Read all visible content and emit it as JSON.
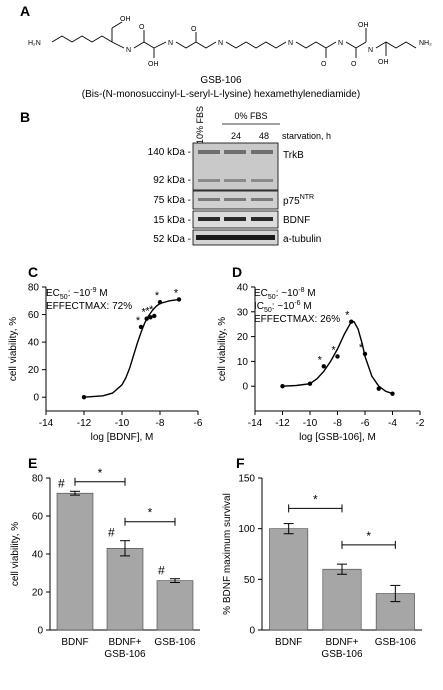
{
  "panels": {
    "A": {
      "letter": "A",
      "compound_label": "GSB-106",
      "compound_desc": "(Bis-(N-monosuccinyl-L-seryl-L-lysine) hexamethylenediamide)",
      "atoms": {
        "h2n": "H₂N",
        "nh2": "NH₂",
        "oh": "OH",
        "o": "O",
        "h": "H",
        "n": "N"
      }
    },
    "B": {
      "letter": "B",
      "lane_headers": {
        "fbs10": "10% FBS",
        "fbs0": "0% FBS",
        "h24": "24",
        "h48": "48",
        "starvation": "starvation, h"
      },
      "mw_markers": [
        "140 kDa -",
        "92 kDa -",
        "75 kDa -",
        "15 kDa -",
        "52 kDa -"
      ],
      "bands": {
        "trkb": "TrkB",
        "p75": "p75",
        "p75_sup": "NTR",
        "bdnf": "BDNF",
        "tubulin": "a-tubulin"
      }
    },
    "C": {
      "letter": "C",
      "annotation_ec50": "EC",
      "annotation_ec50_sub": "50",
      "annotation_ec50_val": ": ~10",
      "annotation_ec50_exp": "-9",
      "annotation_ec50_unit": " M",
      "annotation_effectmax": "EFFECTMAX: 72%"
    },
    "D": {
      "letter": "D",
      "annotation_ec50": "EC",
      "annotation_ec50_sub": "50",
      "annotation_ec50_val": ": ~10",
      "annotation_ec50_exp": "-8",
      "annotation_ec50_unit": " M",
      "annotation_ic50": "IC",
      "annotation_ic50_sub": "50",
      "annotation_ic50_val": ": ~10",
      "annotation_ic50_exp": "-6",
      "annotation_ic50_unit": " M",
      "annotation_effectmax": "EFFECTMAX: 26%"
    },
    "E": {
      "letter": "E"
    },
    "F": {
      "letter": "F"
    }
  },
  "chart_data": [
    {
      "id": "C",
      "type": "scatter",
      "xlabel": "log [BDNF], M",
      "ylabel": "cell viability, %",
      "xlim": [
        -14,
        -6
      ],
      "ylim": [
        -10,
        80
      ],
      "xticks": [
        "-14",
        "-12",
        "-10",
        "-8",
        "-6"
      ],
      "yticks": [
        "0",
        "20",
        "40",
        "60",
        "80"
      ],
      "x": [
        -12,
        -9,
        -8.7,
        -8.5,
        -8.3,
        -8,
        -7
      ],
      "y": [
        0,
        51,
        57,
        58,
        59,
        69,
        71
      ],
      "significant": [
        false,
        true,
        true,
        true,
        true,
        true,
        true
      ],
      "curve_x": [
        -12,
        -11,
        -10.5,
        -10,
        -9.8,
        -9.6,
        -9.4,
        -9.2,
        -9,
        -8.8,
        -8.6,
        -8.4,
        -8.2,
        -8,
        -7.5,
        -7
      ],
      "curve_y": [
        0,
        1,
        3,
        9,
        14,
        21,
        30,
        39,
        47,
        54,
        59,
        63,
        66,
        68,
        70,
        71
      ],
      "star_label": "*"
    },
    {
      "id": "D",
      "type": "scatter",
      "xlabel": "log [GSB-106], M",
      "ylabel": "cell viability, %",
      "xlim": [
        -14,
        -2
      ],
      "ylim": [
        -10,
        40
      ],
      "xticks": [
        "-14",
        "-12",
        "-10",
        "-8",
        "-6",
        "-4",
        "-2"
      ],
      "yticks": [
        "0",
        "10",
        "20",
        "30",
        "40"
      ],
      "x": [
        -12,
        -10,
        -9,
        -8,
        -7,
        -6,
        -5,
        -4
      ],
      "y": [
        0,
        1,
        8,
        12,
        26,
        13,
        -1,
        -3
      ],
      "significant": [
        false,
        false,
        true,
        true,
        true,
        true,
        false,
        false
      ],
      "curve_x": [
        -12,
        -11,
        -10,
        -9.5,
        -9,
        -8.5,
        -8,
        -7.5,
        -7,
        -6.8,
        -6.5,
        -6.2,
        -6,
        -5.5,
        -5,
        -4.5,
        -4
      ],
      "curve_y": [
        0,
        0.3,
        1,
        3,
        6,
        10,
        15,
        21,
        26,
        26,
        23,
        17,
        12,
        4,
        0,
        -2,
        -3
      ],
      "star_label": "*"
    },
    {
      "id": "E",
      "type": "bar",
      "ylabel": "cell viability, %",
      "ylim": [
        0,
        80
      ],
      "yticks": [
        "0",
        "20",
        "40",
        "60",
        "80"
      ],
      "categories": [
        "BDNF",
        "BDNF+\nGSB-106",
        "GSB-106"
      ],
      "category_lines": [
        [
          "BDNF"
        ],
        [
          "BDNF+",
          "GSB-106"
        ],
        [
          "GSB-106"
        ]
      ],
      "values": [
        72,
        43,
        26
      ],
      "errors": [
        1,
        4,
        1
      ],
      "bar_marks": [
        "#",
        "#",
        "#"
      ],
      "bracket_label": "*"
    },
    {
      "id": "F",
      "type": "bar",
      "ylabel": "% BDNF maximum survival",
      "ylim": [
        0,
        150
      ],
      "yticks": [
        "0",
        "50",
        "100",
        "150"
      ],
      "categories": [
        "BDNF",
        "BDNF+\nGSB-106",
        "GSB-106"
      ],
      "category_lines": [
        [
          "BDNF"
        ],
        [
          "BDNF+",
          "GSB-106"
        ],
        [
          "GSB-106"
        ]
      ],
      "values": [
        100,
        60,
        36
      ],
      "errors": [
        5,
        5,
        8
      ],
      "bracket_label": "*"
    }
  ]
}
